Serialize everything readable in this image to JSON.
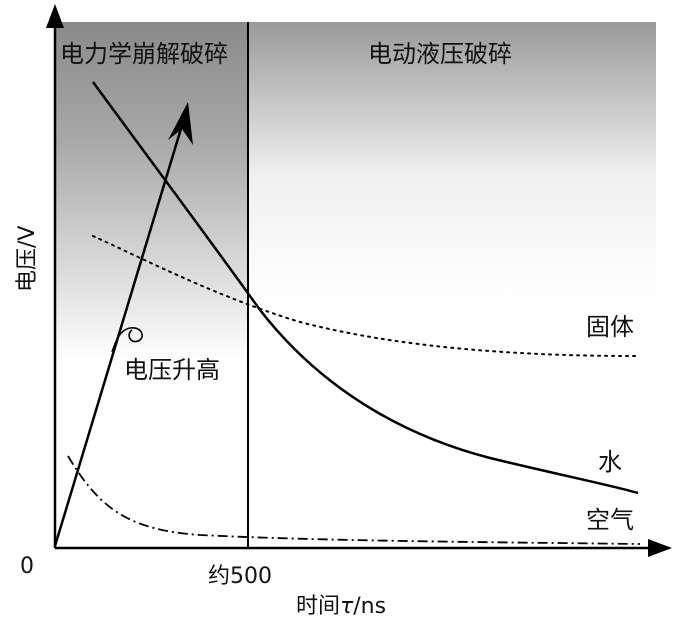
{
  "region_labels": {
    "left": "电力学崩解破碎",
    "right": "电动液压破碎"
  },
  "axes": {
    "y_label": "电压/V",
    "x_label_prefix": "时间",
    "x_label_var": "τ",
    "x_label_suffix": "/ns",
    "origin": "0",
    "x_tick": "约500"
  },
  "annotations": {
    "voltage_rise": "电压升高"
  },
  "curve_labels": {
    "solid": "固体",
    "water": "水",
    "air": "空气"
  }
}
